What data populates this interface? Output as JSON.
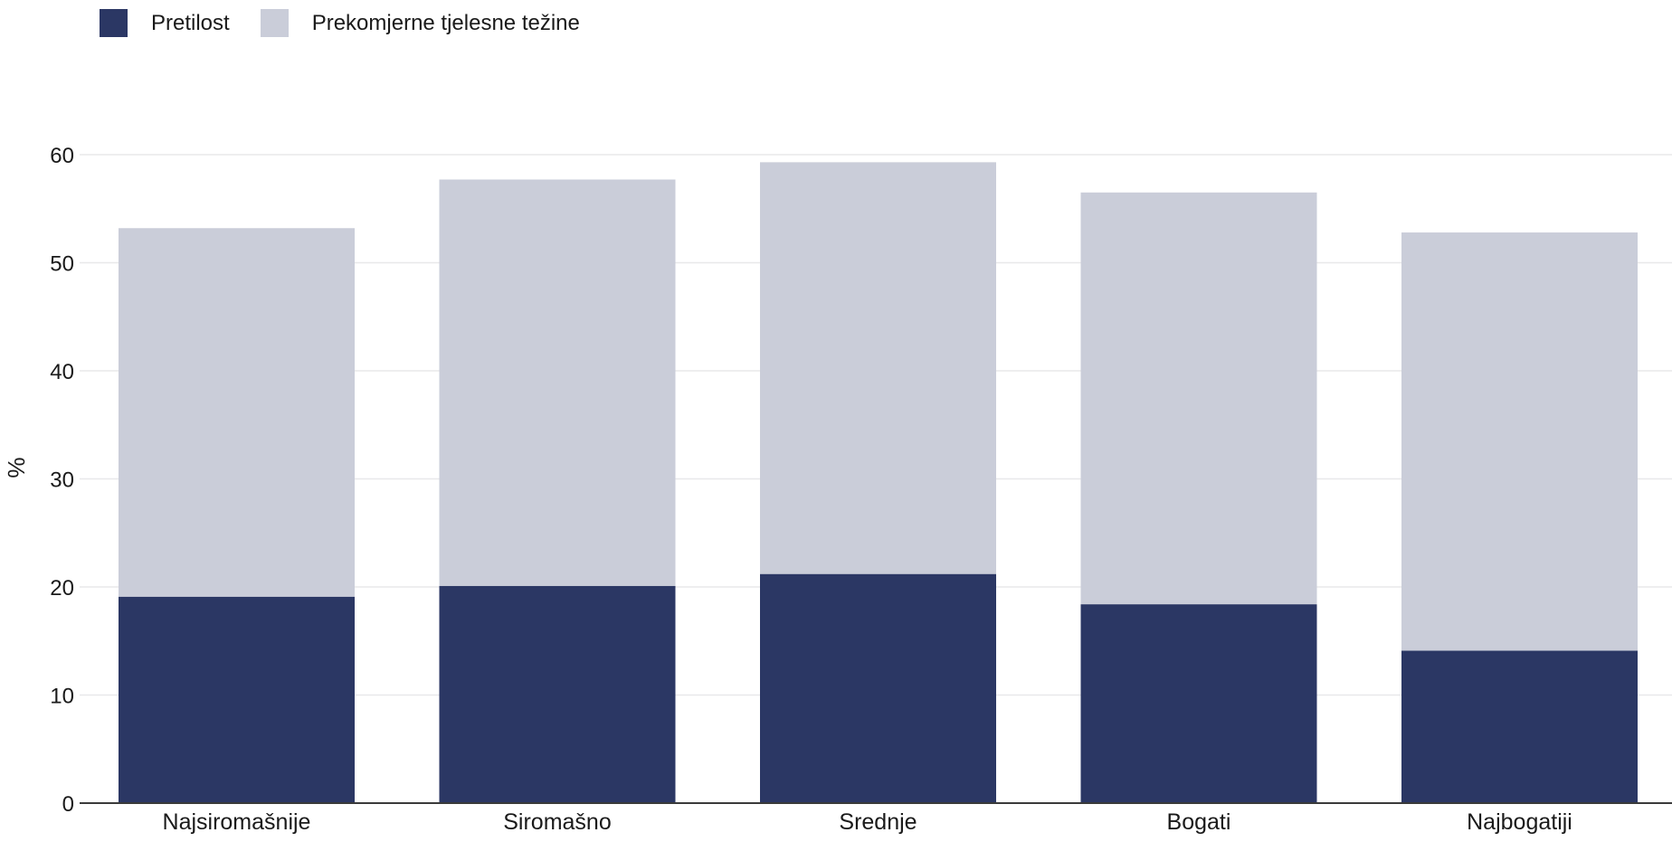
{
  "chart_data": {
    "type": "bar",
    "stacked": true,
    "categories": [
      "Najsiromašnije",
      "Siromašno",
      "Srednje",
      "Bogati",
      "Najbogatiji"
    ],
    "series": [
      {
        "name": "Pretilost",
        "color": "#2b3764",
        "values": [
          19.1,
          20.1,
          21.2,
          18.4,
          14.1
        ]
      },
      {
        "name": "Prekomjerne tjelesne težine",
        "color": "#cacdd9",
        "values": [
          34.1,
          37.6,
          38.1,
          38.1,
          38.7
        ]
      }
    ],
    "xlabel": "",
    "ylabel": "%",
    "ylim": [
      0,
      60
    ],
    "yticks": [
      0,
      10,
      20,
      30,
      40,
      50,
      60
    ],
    "grid": true,
    "legend_position": "top-left"
  }
}
